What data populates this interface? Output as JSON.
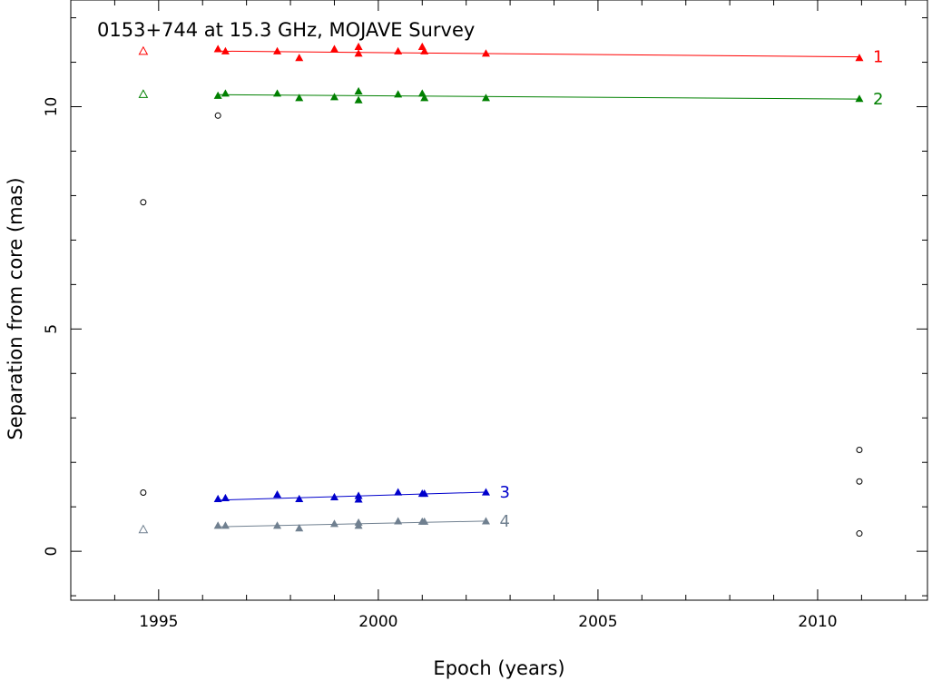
{
  "chart_data": {
    "type": "scatter",
    "title": "0153+744 at 15.3 GHz, MOJAVE Survey",
    "xlabel": "Epoch (years)",
    "ylabel": "Separation from core (mas)",
    "xlim": [
      1993.0,
      2012.5
    ],
    "ylim": [
      -1.1,
      12.4
    ],
    "xticks": [
      1995,
      2000,
      2005,
      2010
    ],
    "yticks": [
      0,
      5,
      10
    ],
    "grid": false,
    "legend": "none",
    "series": [
      {
        "name": "1",
        "color": "#ff0000",
        "marker": "filled-triangle",
        "points": [
          [
            1996.35,
            11.3
          ],
          [
            1996.52,
            11.25
          ],
          [
            1997.7,
            11.25
          ],
          [
            1998.2,
            11.1
          ],
          [
            1999.0,
            11.3
          ],
          [
            1999.55,
            11.35
          ],
          [
            1999.55,
            11.2
          ],
          [
            2000.45,
            11.25
          ],
          [
            2001.0,
            11.35
          ],
          [
            2001.05,
            11.25
          ],
          [
            2002.45,
            11.2
          ],
          [
            2010.95,
            11.1
          ]
        ],
        "fit": [
          [
            1996.35,
            11.25
          ],
          [
            2010.95,
            11.12
          ]
        ],
        "open_points": [
          [
            1994.65,
            11.25
          ]
        ]
      },
      {
        "name": "2",
        "color": "#008000",
        "marker": "filled-triangle",
        "points": [
          [
            1996.35,
            10.25
          ],
          [
            1996.52,
            10.3
          ],
          [
            1997.7,
            10.3
          ],
          [
            1998.2,
            10.2
          ],
          [
            1999.0,
            10.22
          ],
          [
            1999.55,
            10.35
          ],
          [
            1999.55,
            10.15
          ],
          [
            2000.45,
            10.28
          ],
          [
            2001.0,
            10.3
          ],
          [
            2001.05,
            10.2
          ],
          [
            2002.45,
            10.2
          ],
          [
            2010.95,
            10.18
          ]
        ],
        "fit": [
          [
            1996.35,
            10.27
          ],
          [
            2010.95,
            10.17
          ]
        ],
        "open_points": [
          [
            1994.65,
            10.28
          ]
        ]
      },
      {
        "name": "3",
        "color": "#0000cc",
        "marker": "filled-triangle",
        "points": [
          [
            1996.35,
            1.18
          ],
          [
            1996.52,
            1.2
          ],
          [
            1997.7,
            1.28
          ],
          [
            1998.2,
            1.18
          ],
          [
            1999.0,
            1.22
          ],
          [
            1999.55,
            1.25
          ],
          [
            1999.55,
            1.17
          ],
          [
            2000.45,
            1.33
          ],
          [
            2001.0,
            1.3
          ],
          [
            2001.05,
            1.3
          ],
          [
            2002.45,
            1.33
          ]
        ],
        "fit": [
          [
            1996.35,
            1.15
          ],
          [
            2002.45,
            1.33
          ]
        ]
      },
      {
        "name": "4",
        "color": "#708090",
        "marker": "filled-triangle",
        "points": [
          [
            1996.35,
            0.58
          ],
          [
            1996.52,
            0.58
          ],
          [
            1997.7,
            0.58
          ],
          [
            1998.2,
            0.52
          ],
          [
            1999.0,
            0.62
          ],
          [
            1999.55,
            0.65
          ],
          [
            1999.55,
            0.58
          ],
          [
            2000.45,
            0.68
          ],
          [
            2001.0,
            0.67
          ],
          [
            2001.05,
            0.67
          ],
          [
            2002.45,
            0.68
          ]
        ],
        "fit": [
          [
            1996.35,
            0.55
          ],
          [
            2002.45,
            0.68
          ]
        ],
        "open_points": [
          [
            1994.65,
            0.49
          ]
        ]
      }
    ],
    "other_components": {
      "color": "#000000",
      "marker": "open-circle",
      "points": [
        [
          1994.65,
          7.85
        ],
        [
          1994.65,
          1.32
        ],
        [
          1996.35,
          9.8
        ],
        [
          2010.95,
          2.28
        ],
        [
          2010.95,
          1.57
        ],
        [
          2010.95,
          0.4
        ]
      ]
    }
  }
}
